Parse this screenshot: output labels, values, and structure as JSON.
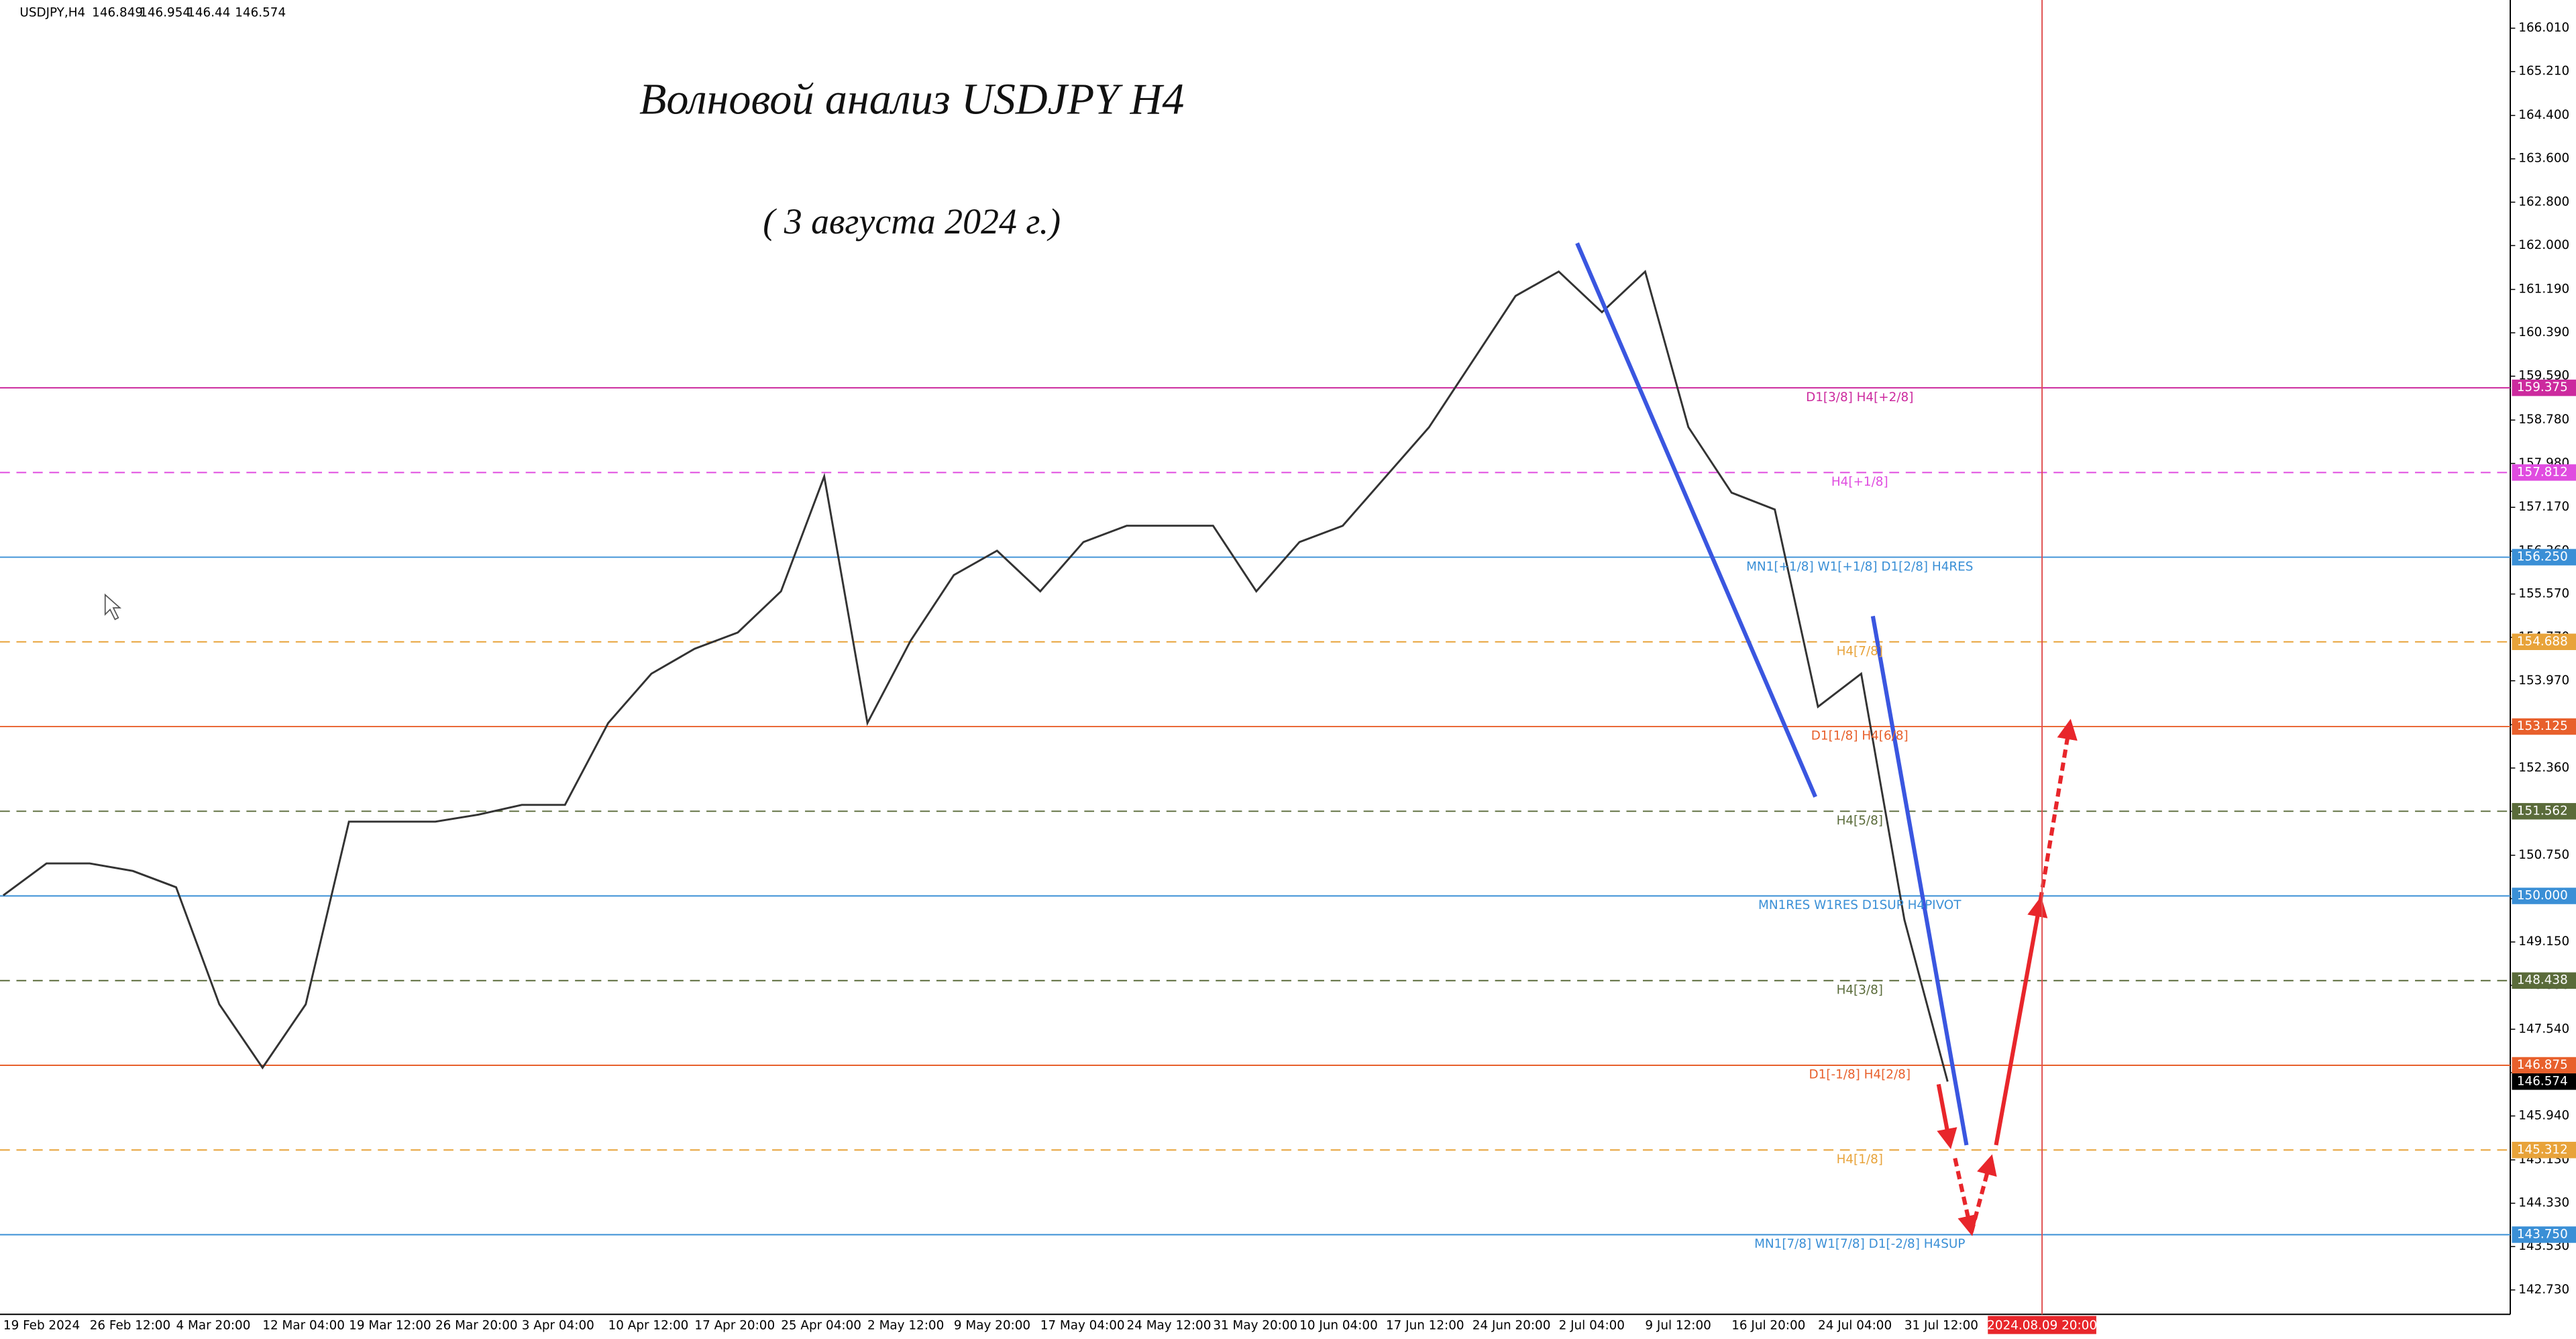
{
  "chart_data": {
    "type": "line",
    "symbol": "USDJPY,H4",
    "ohlc": [
      146.849,
      146.954,
      146.44,
      146.574
    ],
    "title": "Волновой анализ USDJPY H4",
    "subtitle": "( 3 августа 2024 г.)",
    "categories": [
      "19 Feb 2024",
      null,
      "26 Feb 12:00",
      null,
      "4 Mar 20:00",
      null,
      "12 Mar 04:00",
      null,
      "19 Mar 12:00",
      null,
      "26 Mar 20:00",
      null,
      "3 Apr 04:00",
      null,
      "10 Apr 12:00",
      null,
      "17 Apr 20:00",
      null,
      "25 Apr 04:00",
      null,
      "2 May 12:00",
      null,
      "9 May 20:00",
      null,
      "17 May 04:00",
      null,
      "24 May 12:00",
      null,
      "31 May 20:00",
      null,
      "10 Jun 04:00",
      null,
      "17 Jun 12:00",
      null,
      "24 Jun 20:00",
      null,
      "2 Jul 04:00",
      null,
      "9 Jul 12:00",
      null,
      "16 Jul 20:00",
      null,
      "24 Jul 04:00",
      null,
      "31 Jul 12:00",
      null
    ],
    "values": [
      150.01,
      150.6,
      150.6,
      150.46,
      150.16,
      148.0,
      146.83,
      148.0,
      151.37,
      151.37,
      151.37,
      151.5,
      151.68,
      151.68,
      153.19,
      154.1,
      154.56,
      154.86,
      155.62,
      157.74,
      153.19,
      154.71,
      155.92,
      156.37,
      155.62,
      156.53,
      156.83,
      156.83,
      156.83,
      155.62,
      156.53,
      156.83,
      157.74,
      158.65,
      159.86,
      161.07,
      161.52,
      160.77,
      161.52,
      158.65,
      157.44,
      157.13,
      153.49,
      154.1,
      149.56,
      146.574
    ],
    "color": "#333333",
    "ylim": [
      142.28,
      166.53
    ],
    "yticks": [
      {
        "value": 166.01,
        "label": "166.010"
      },
      {
        "value": 165.21,
        "label": "165.210"
      },
      {
        "value": 164.4,
        "label": "164.400"
      },
      {
        "value": 163.6,
        "label": "163.600"
      },
      {
        "value": 162.8,
        "label": "162.800"
      },
      {
        "value": 162,
        "label": "162.000"
      },
      {
        "value": 161.19,
        "label": "161.190"
      },
      {
        "value": 160.39,
        "label": "160.390"
      },
      {
        "value": 159.59,
        "label": "159.590"
      },
      {
        "value": 158.78,
        "label": "158.780"
      },
      {
        "value": 157.98,
        "label": "157.980"
      },
      {
        "value": 157.17,
        "label": "157.170"
      },
      {
        "value": 156.36,
        "label": "156.360"
      },
      {
        "value": 155.57,
        "label": "155.570"
      },
      {
        "value": 154.77,
        "label": "154.770"
      },
      {
        "value": 153.97,
        "label": "153.970"
      },
      {
        "value": 153.16,
        "label": "153.160"
      },
      {
        "value": 152.36,
        "label": "152.360"
      },
      {
        "value": 151.56,
        "label": "151.560"
      },
      {
        "value": 150.75,
        "label": "150.750"
      },
      {
        "value": 149.95,
        "label": "149.950"
      },
      {
        "value": 149.15,
        "label": "149.150"
      },
      {
        "value": 148.35,
        "label": "148.350"
      },
      {
        "value": 147.54,
        "label": "147.540"
      },
      {
        "value": 146.74,
        "label": "146.740"
      },
      {
        "value": 145.94,
        "label": "145.940"
      },
      {
        "value": 145.13,
        "label": "145.130"
      },
      {
        "value": 144.33,
        "label": "144.330"
      },
      {
        "value": 143.53,
        "label": "143.530"
      },
      {
        "value": 142.73,
        "label": "142.730"
      }
    ],
    "levels": [
      {
        "name": "D1[3/8] H4[+2/8]",
        "value": 159.375,
        "color": "#cc2a9e",
        "dashed": false
      },
      {
        "name": "H4[+1/8]",
        "value": 157.812,
        "color": "#e04ce0",
        "dashed": true
      },
      {
        "name": "MN1[+1/8] W1[+1/8] D1[2/8] H4RES",
        "value": {
          "value": 156.25,
          "label": "156.250"
        },
        "color": "#3a8fd6",
        "dashed": false
      },
      {
        "name": "H4[7/8]",
        "value": {
          "value": 154.688,
          "label": "154.688"
        },
        "color": "#e8a33a",
        "dashed": true
      },
      {
        "name": "D1[1/8] H4[6/8]",
        "value": {
          "value": 153.125,
          "label": "153.125"
        },
        "color": "#e8602c",
        "dashed": false
      },
      {
        "name": "H4[5/8]",
        "value": {
          "value": 151.562,
          "label": "151.562"
        },
        "color": "#5a6b3a",
        "dashed": true
      },
      {
        "name": "MN1RES W1RES D1SUP H4PIVOT",
        "value": {
          "value": 150,
          "label": "150.000"
        },
        "color": "#3a8fd6",
        "dashed": false
      },
      {
        "name": "H4[3/8]",
        "value": {
          "value": 148.438,
          "label": "148.438"
        },
        "color": "#5a6b3a",
        "dashed": true
      },
      {
        "name": "D1[-1/8] H4[2/8]",
        "value": 146.875,
        "color": "#e8602c",
        "dashed": false
      },
      {
        "name": "H4[1/8]",
        "value": {
          "value": 145.312,
          "label": "145.312"
        },
        "color": "#e8a33a",
        "dashed": true
      },
      {
        "name": "MN1[7/8] W1[7/8] D1[-2/8] H4SUP",
        "value": {
          "value": 143.75,
          "label": "143.750"
        },
        "color": "#3a8fd6",
        "dashed": false
      }
    ],
    "current_price": 146.574,
    "cursor_time": "2024.08.09 20:00"
  }
}
